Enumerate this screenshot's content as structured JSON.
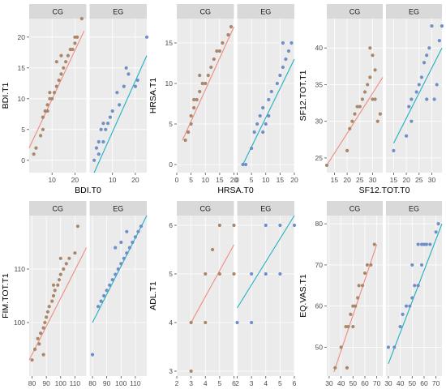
{
  "style": {
    "cg_color": "#a9876a",
    "eg_color": "#6f8fc9",
    "cg_line": "#f08b7f",
    "eg_line": "#1fb0c4",
    "panel_bg": "#ebebeb",
    "strip_bg": "#d9d9d9",
    "grid_color": "#ffffff",
    "label_color": "#000000",
    "tick_color": "#4d4d4d"
  },
  "chart_data": [
    {
      "type": "scatter",
      "xlabel": "BDI.T0",
      "ylabel": "BDI.T1",
      "facets": [
        "CG",
        "EG"
      ],
      "xlim": [
        0,
        25
      ],
      "ylim": [
        -2,
        23
      ],
      "xticks": [
        10,
        20
      ],
      "yticks": [
        0,
        5,
        10,
        15,
        20
      ],
      "series": [
        {
          "name": "CG",
          "fit": [
            [
              0,
              2
            ],
            [
              24,
              21
            ]
          ],
          "points": [
            [
              2,
              1
            ],
            [
              3,
              2
            ],
            [
              5,
              4
            ],
            [
              6,
              5
            ],
            [
              6,
              7
            ],
            [
              7,
              8
            ],
            [
              8,
              9
            ],
            [
              9,
              10
            ],
            [
              9,
              11
            ],
            [
              10,
              10
            ],
            [
              11,
              11
            ],
            [
              12,
              12
            ],
            [
              13,
              13
            ],
            [
              14,
              14
            ],
            [
              15,
              15
            ],
            [
              16,
              16
            ],
            [
              17,
              17
            ],
            [
              18,
              18
            ],
            [
              19,
              18
            ],
            [
              20,
              19
            ],
            [
              20,
              20
            ],
            [
              21,
              20
            ],
            [
              12,
              16
            ],
            [
              14,
              17
            ],
            [
              8,
              8
            ],
            [
              23,
              23
            ]
          ]
        },
        {
          "name": "EG",
          "fit": [
            [
              2,
              -2
            ],
            [
              25,
              17
            ]
          ],
          "points": [
            [
              2,
              0
            ],
            [
              3,
              2
            ],
            [
              4,
              3
            ],
            [
              5,
              5
            ],
            [
              6,
              6
            ],
            [
              7,
              5
            ],
            [
              8,
              6
            ],
            [
              10,
              8
            ],
            [
              12,
              11
            ],
            [
              13,
              9
            ],
            [
              15,
              12
            ],
            [
              16,
              15
            ],
            [
              17,
              14
            ],
            [
              20,
              12
            ],
            [
              21,
              13
            ],
            [
              6,
              3
            ],
            [
              9,
              7
            ],
            [
              4,
              1
            ],
            [
              25,
              20
            ]
          ]
        }
      ]
    },
    {
      "type": "scatter",
      "xlabel": "HRSA.T0",
      "ylabel": "HRSA.T1",
      "facets": [
        "CG",
        "EG"
      ],
      "xlim": [
        0,
        20
      ],
      "ylim": [
        -1,
        18
      ],
      "xticks": [
        0,
        5,
        10,
        15,
        20
      ],
      "yticks": [
        0,
        5,
        10,
        15
      ],
      "series": [
        {
          "name": "CG",
          "fit": [
            [
              2,
              3
            ],
            [
              20,
              17
            ]
          ],
          "points": [
            [
              3,
              3
            ],
            [
              4,
              4
            ],
            [
              5,
              5
            ],
            [
              5,
              6
            ],
            [
              6,
              7
            ],
            [
              7,
              8
            ],
            [
              8,
              9
            ],
            [
              9,
              10
            ],
            [
              10,
              10
            ],
            [
              11,
              11
            ],
            [
              12,
              12
            ],
            [
              13,
              13
            ],
            [
              14,
              14
            ],
            [
              15,
              14
            ],
            [
              16,
              15
            ],
            [
              18,
              16
            ],
            [
              19,
              17
            ],
            [
              6,
              8
            ],
            [
              8,
              11
            ],
            [
              4,
              4
            ]
          ]
        },
        {
          "name": "EG",
          "fit": [
            [
              2,
              0
            ],
            [
              20,
              13
            ]
          ],
          "points": [
            [
              2,
              0
            ],
            [
              3,
              0
            ],
            [
              5,
              2
            ],
            [
              6,
              4
            ],
            [
              7,
              5
            ],
            [
              8,
              6
            ],
            [
              9,
              7
            ],
            [
              10,
              5
            ],
            [
              11,
              8
            ],
            [
              12,
              9
            ],
            [
              14,
              10
            ],
            [
              15,
              11
            ],
            [
              16,
              12
            ],
            [
              17,
              13
            ],
            [
              18,
              14
            ],
            [
              19,
              15
            ],
            [
              9,
              4
            ],
            [
              11,
              6
            ],
            [
              16,
              15
            ]
          ]
        }
      ]
    },
    {
      "type": "scatter",
      "xlabel": "SF12.TOT.T0",
      "ylabel": "SF12.TOT.T1",
      "facets": [
        "CG",
        "EG"
      ],
      "xlim": [
        12,
        34
      ],
      "ylim": [
        23,
        44
      ],
      "xticks": [
        15,
        20,
        25,
        30
      ],
      "yticks": [
        25,
        30,
        35,
        40
      ],
      "series": [
        {
          "name": "CG",
          "fit": [
            [
              12,
              24
            ],
            [
              34,
              36
            ]
          ],
          "points": [
            [
              12,
              24
            ],
            [
              20,
              26
            ],
            [
              21,
              29
            ],
            [
              22,
              30
            ],
            [
              23,
              31
            ],
            [
              24,
              32
            ],
            [
              25,
              32
            ],
            [
              26,
              33
            ],
            [
              27,
              34
            ],
            [
              28,
              35
            ],
            [
              29,
              36
            ],
            [
              30,
              33
            ],
            [
              31,
              33
            ],
            [
              32,
              30
            ],
            [
              33,
              31
            ],
            [
              29,
              40
            ],
            [
              30,
              39
            ],
            [
              31,
              37
            ]
          ]
        },
        {
          "name": "EG",
          "fit": [
            [
              15,
              27
            ],
            [
              34,
              40
            ]
          ],
          "points": [
            [
              15,
              26
            ],
            [
              20,
              28
            ],
            [
              21,
              32
            ],
            [
              22,
              33
            ],
            [
              24,
              34
            ],
            [
              25,
              35
            ],
            [
              26,
              36
            ],
            [
              27,
              38
            ],
            [
              28,
              39
            ],
            [
              29,
              40
            ],
            [
              30,
              43
            ],
            [
              31,
              33
            ],
            [
              32,
              35
            ],
            [
              33,
              41
            ],
            [
              34,
              43
            ],
            [
              22,
              30
            ],
            [
              28,
              33
            ]
          ]
        }
      ]
    },
    {
      "type": "scatter",
      "xlabel": "FIM.TOT.T0",
      "ylabel": "FIM.TOT.T1",
      "facets": [
        "CG",
        "EG"
      ],
      "xlim": [
        78,
        118
      ],
      "ylim": [
        90,
        120
      ],
      "xticks": [
        80,
        90,
        100,
        110
      ],
      "yticks": [
        100,
        110
      ],
      "series": [
        {
          "name": "CG",
          "fit": [
            [
              78,
              93
            ],
            [
              118,
              114
            ]
          ],
          "points": [
            [
              80,
              93
            ],
            [
              82,
              95
            ],
            [
              84,
              97
            ],
            [
              85,
              96
            ],
            [
              86,
              98
            ],
            [
              88,
              99
            ],
            [
              89,
              100
            ],
            [
              90,
              101
            ],
            [
              91,
              102
            ],
            [
              92,
              103
            ],
            [
              94,
              104
            ],
            [
              95,
              105
            ],
            [
              96,
              106
            ],
            [
              98,
              107
            ],
            [
              99,
              108
            ],
            [
              100,
              109
            ],
            [
              102,
              110
            ],
            [
              104,
              111
            ],
            [
              106,
              112
            ],
            [
              88,
              94
            ],
            [
              95,
              107
            ],
            [
              100,
              112
            ],
            [
              110,
              113
            ],
            [
              112,
              118
            ]
          ]
        },
        {
          "name": "EG",
          "fit": [
            [
              80,
              100
            ],
            [
              118,
              120
            ]
          ],
          "points": [
            [
              80,
              94
            ],
            [
              84,
              103
            ],
            [
              86,
              104
            ],
            [
              88,
              105
            ],
            [
              90,
              106
            ],
            [
              92,
              107
            ],
            [
              94,
              108
            ],
            [
              96,
              109
            ],
            [
              98,
              110
            ],
            [
              100,
              111
            ],
            [
              102,
              112
            ],
            [
              104,
              113
            ],
            [
              106,
              114
            ],
            [
              108,
              115
            ],
            [
              110,
              116
            ],
            [
              112,
              117
            ],
            [
              114,
              118
            ],
            [
              96,
              114
            ],
            [
              100,
              115
            ],
            [
              104,
              117
            ]
          ]
        }
      ]
    },
    {
      "type": "scatter",
      "xlabel": "ADL.T0",
      "ylabel": "ADL.T1",
      "facets": [
        "CG",
        "EG"
      ],
      "xlim": [
        2,
        6
      ],
      "ylim": [
        2.9,
        6.2
      ],
      "xticks": [
        2,
        3,
        4,
        5,
        6
      ],
      "yticks": [
        3,
        4,
        5,
        6
      ],
      "series": [
        {
          "name": "CG",
          "fit": [
            [
              3,
              4
            ],
            [
              6,
              5.6
            ]
          ],
          "points": [
            [
              3,
              3
            ],
            [
              3,
              4
            ],
            [
              4,
              4
            ],
            [
              4,
              5
            ],
            [
              5,
              5
            ],
            [
              5,
              6
            ],
            [
              6,
              5
            ],
            [
              6,
              6
            ],
            [
              4.5,
              5.5
            ]
          ]
        },
        {
          "name": "EG",
          "fit": [
            [
              2,
              4.3
            ],
            [
              6,
              6.2
            ]
          ],
          "points": [
            [
              2,
              4
            ],
            [
              3,
              4
            ],
            [
              3,
              5
            ],
            [
              4,
              5
            ],
            [
              4,
              6
            ],
            [
              5,
              5
            ],
            [
              5,
              6
            ],
            [
              6,
              6
            ]
          ]
        }
      ]
    },
    {
      "type": "scatter",
      "xlabel": "EQ.VAS.T0",
      "ylabel": "EQ.VAS.T1",
      "facets": [
        "CG",
        "EG"
      ],
      "xlim": [
        28,
        75
      ],
      "ylim": [
        43,
        82
      ],
      "xticks": [
        30,
        40,
        50,
        60,
        70
      ],
      "yticks": [
        50,
        60,
        70,
        80
      ],
      "series": [
        {
          "name": "CG",
          "fit": [
            [
              34,
              44
            ],
            [
              70,
              75
            ]
          ],
          "points": [
            [
              35,
              45
            ],
            [
              40,
              50
            ],
            [
              44,
              55
            ],
            [
              46,
              55
            ],
            [
              48,
              58
            ],
            [
              50,
              60
            ],
            [
              52,
              60
            ],
            [
              54,
              62
            ],
            [
              55,
              65
            ],
            [
              58,
              65
            ],
            [
              60,
              68
            ],
            [
              62,
              70
            ],
            [
              65,
              70
            ],
            [
              68,
              75
            ],
            [
              45,
              45
            ],
            [
              50,
              55
            ]
          ]
        },
        {
          "name": "EG",
          "fit": [
            [
              30,
              46
            ],
            [
              75,
              80
            ]
          ],
          "points": [
            [
              30,
              50
            ],
            [
              35,
              50
            ],
            [
              40,
              55
            ],
            [
              42,
              58
            ],
            [
              45,
              60
            ],
            [
              48,
              60
            ],
            [
              50,
              62
            ],
            [
              52,
              65
            ],
            [
              55,
              65
            ],
            [
              58,
              70
            ],
            [
              60,
              75
            ],
            [
              62,
              75
            ],
            [
              65,
              75
            ],
            [
              70,
              78
            ],
            [
              72,
              80
            ],
            [
              55,
              75
            ],
            [
              58,
              75
            ],
            [
              50,
              70
            ]
          ]
        }
      ]
    }
  ]
}
